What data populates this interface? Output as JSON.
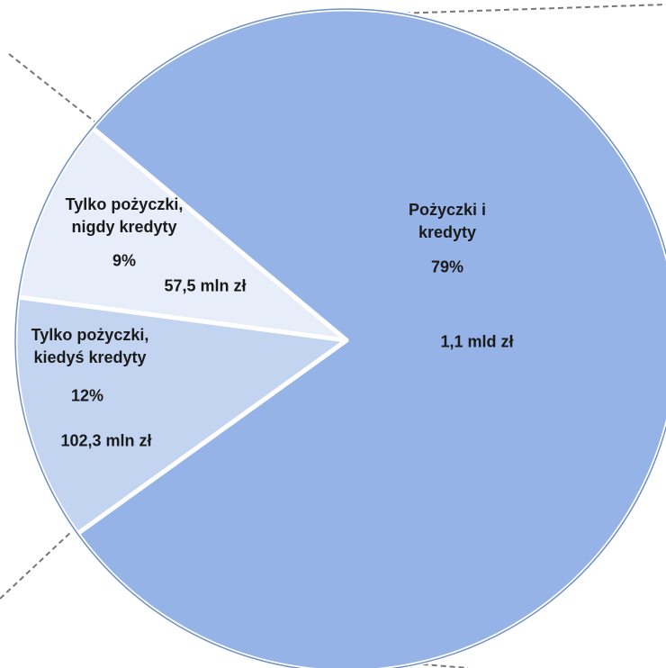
{
  "chart_data": {
    "type": "pie",
    "categories": [
      "Pożyczki i kredyty",
      "Tylko pożyczki, kiedyś kredyty",
      "Tylko pożyczki, nigdy kredyty"
    ],
    "values": [
      79,
      12,
      9
    ],
    "value_labels": [
      "79%",
      "12%",
      "9%"
    ],
    "amounts": [
      "1,1 mld zł",
      "102,3 mln zł",
      "57,5 mln zł"
    ],
    "colors": [
      "#95b3e6",
      "#c3d4f1",
      "#e7edf9"
    ]
  }
}
